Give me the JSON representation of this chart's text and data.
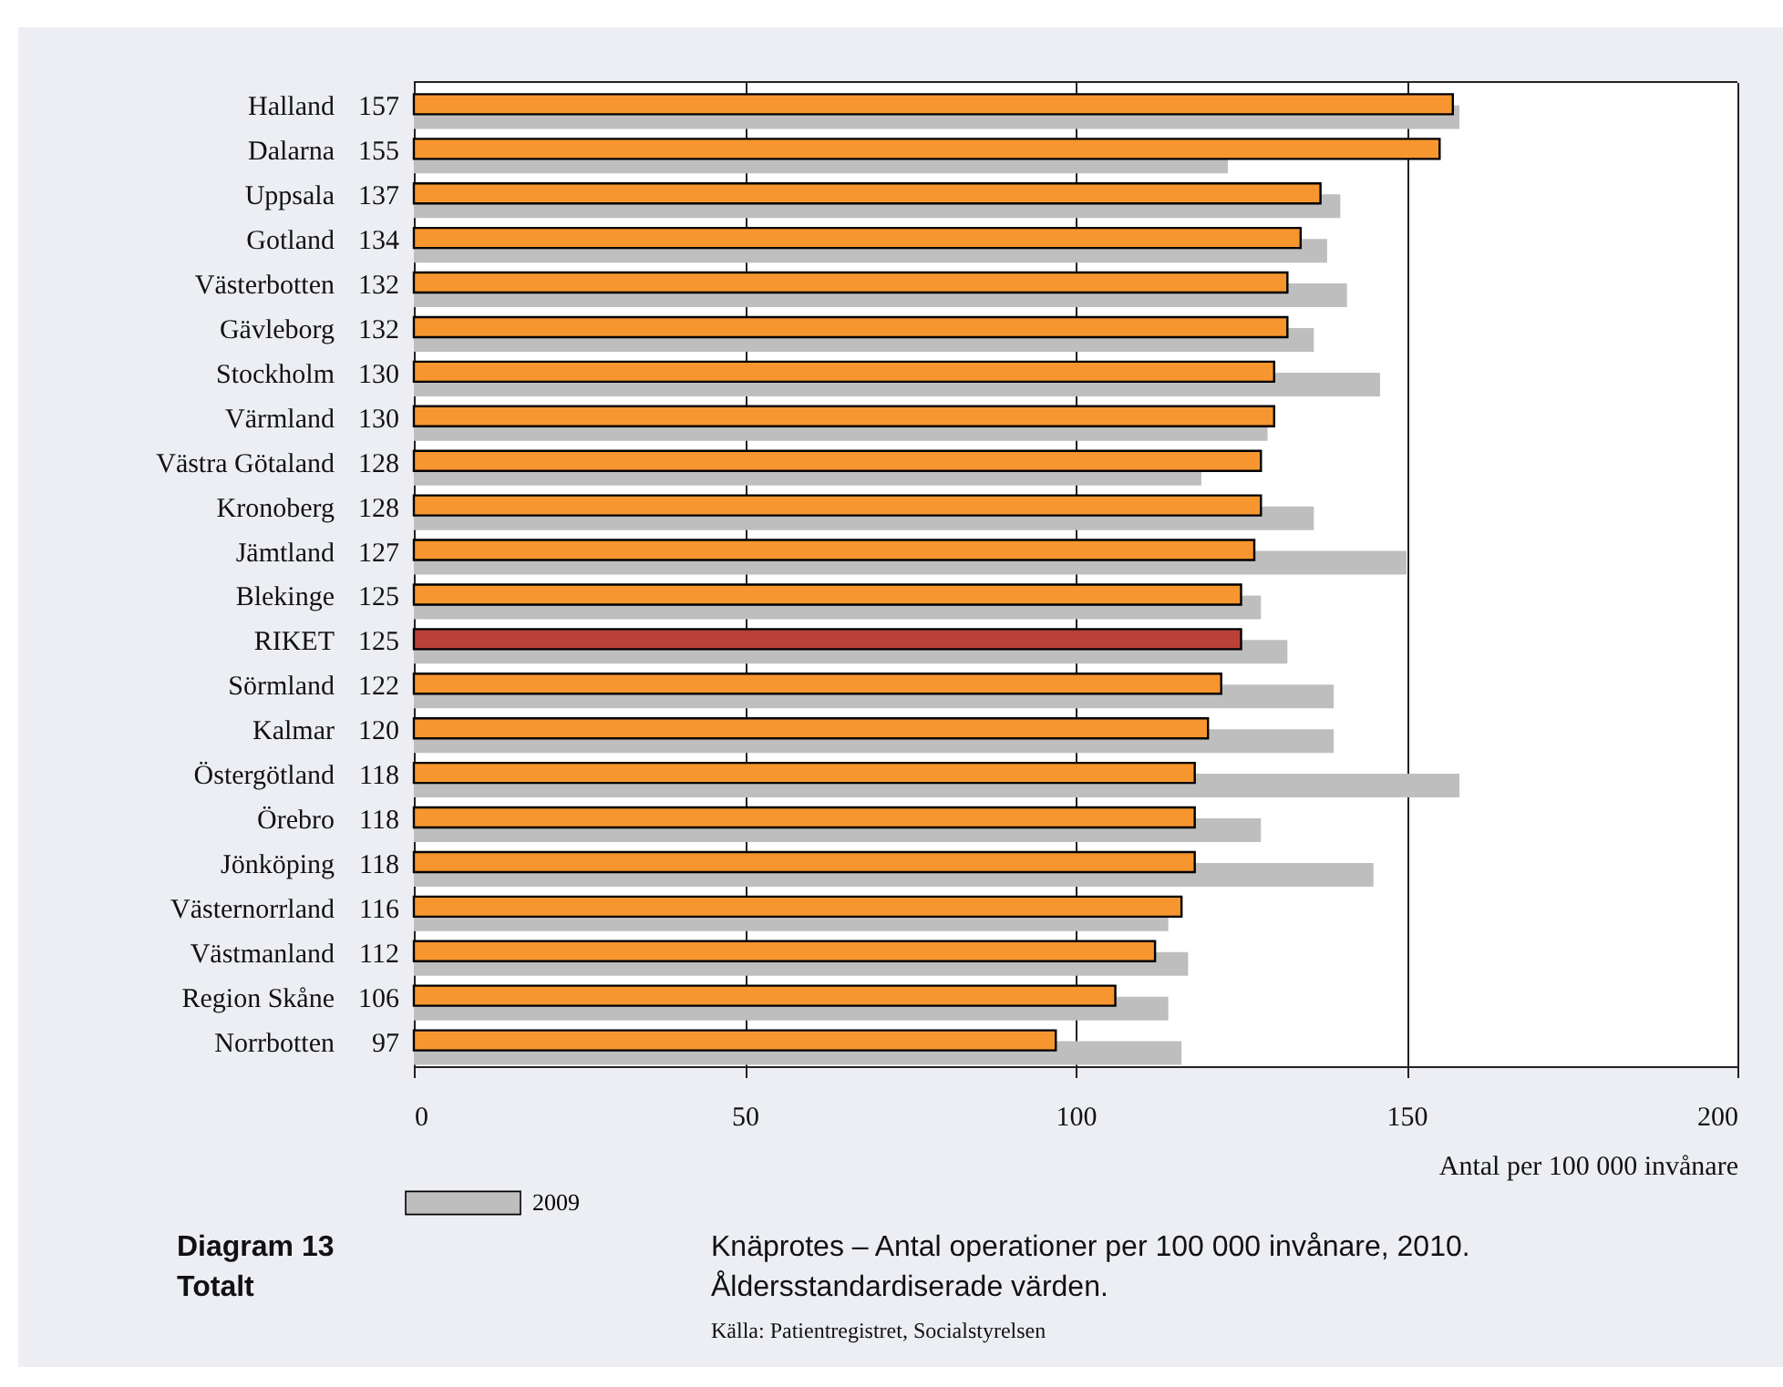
{
  "chart_data": {
    "type": "bar",
    "orientation": "horizontal",
    "title": "Knäprotes – Antal operationer per 100 000 invånare, 2010.",
    "subtitle": "Åldersstandardiserade värden.",
    "xlabel": "Antal per 100 000 invånare",
    "annotations": [
      "Diagram 13",
      "Totalt",
      "Källa: Patientregistret, Socialstyrelsen"
    ],
    "categories": [
      "Halland",
      "Dalarna",
      "Uppsala",
      "Gotland",
      "Västerbotten",
      "Gävleborg",
      "Stockholm",
      "Värmland",
      "Västra Götaland",
      "Kronoberg",
      "Jämtland",
      "Blekinge",
      "RIKET",
      "Sörmland",
      "Kalmar",
      "Östergötland",
      "Örebro",
      "Jönköping",
      "Västernorrland",
      "Västmanland",
      "Region Skåne",
      "Norrbotten"
    ],
    "series": [
      {
        "colors": [
          "#f7962f",
          "#f7962f",
          "#f7962f",
          "#f7962f",
          "#f7962f",
          "#f7962f",
          "#f7962f",
          "#f7962f",
          "#f7962f",
          "#f7962f",
          "#f7962f",
          "#f7962f",
          "#b9413a",
          "#f7962f",
          "#f7962f",
          "#f7962f",
          "#f7962f",
          "#f7962f",
          "#f7962f",
          "#f7962f",
          "#f7962f",
          "#f7962f"
        ],
        "values": [
          157,
          155,
          137,
          134,
          132,
          132,
          130,
          130,
          128,
          128,
          127,
          125,
          125,
          122,
          120,
          118,
          118,
          118,
          116,
          112,
          106,
          97
        ],
        "value_labels": [
          "157",
          "155",
          "137",
          "134",
          "132",
          "132",
          "130",
          "130",
          "128",
          "128",
          "127",
          "125",
          "125",
          "122",
          "120",
          "118",
          "118",
          "118",
          "116",
          "112",
          "106",
          "97"
        ]
      },
      {
        "name": "2009",
        "color": "#bebebe",
        "values": [
          158,
          123,
          140,
          138,
          141,
          136,
          146,
          129,
          119,
          136,
          150,
          128,
          132,
          139,
          139,
          158,
          128,
          145,
          114,
          117,
          114,
          116
        ]
      }
    ],
    "xlim": [
      0,
      200
    ],
    "xticks": [
      0,
      50,
      100,
      150,
      200
    ],
    "grid": "x",
    "legend": "bottom left"
  }
}
